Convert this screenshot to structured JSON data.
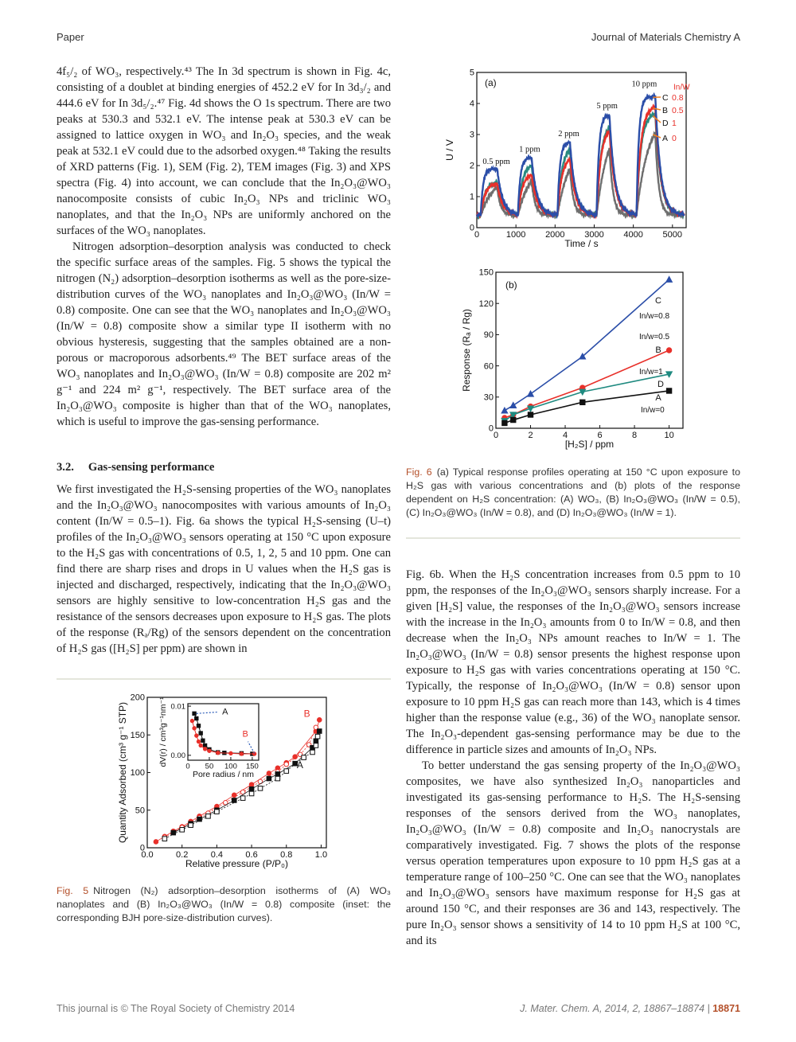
{
  "header": {
    "left": "Paper",
    "right": "Journal of Materials Chemistry A"
  },
  "left_column": {
    "paragraphs": [
      "4f₅/₂ of WO₃, respectively.⁴³ The In 3d spectrum is shown in Fig. 4c, consisting of a doublet at binding energies of 452.2 eV for In 3d₃/₂ and 444.6 eV for In 3d₅/₂.⁴⁷ Fig. 4d shows the O 1s spectrum. There are two peaks at 530.3 and 532.1 eV. The intense peak at 530.3 eV can be assigned to lattice oxygen in WO₃ and In₂O₃ species, and the weak peak at 532.1 eV could due to the adsorbed oxygen.⁴⁸ Taking the results of XRD patterns (Fig. 1), SEM (Fig. 2), TEM images (Fig. 3) and XPS spectra (Fig. 4) into account, we can conclude that the In₂O₃@WO₃ nanocomposite consists of cubic In₂O₃ NPs and triclinic WO₃ nanoplates, and that the In₂O₃ NPs are uniformly anchored on the surfaces of the WO₃ nanoplates.",
      "Nitrogen adsorption–desorption analysis was conducted to check the specific surface areas of the samples. Fig. 5 shows the typical the nitrogen (N₂) adsorption–desorption isotherms as well as the pore-size-distribution curves of the WO₃ nanoplates and In₂O₃@WO₃ (In/W = 0.8) composite. One can see that the WO₃ nanoplates and In₂O₃@WO₃ (In/W = 0.8) composite show a similar type II isotherm with no obvious hysteresis, suggesting that the samples obtained are a non-porous or macroporous adsorbents.⁴⁹ The BET surface areas of the WO₃ nanoplates and In₂O₃@WO₃ (In/W = 0.8) composite are 202 m² g⁻¹ and 224 m² g⁻¹, respectively. The BET surface area of the In₂O₃@WO₃ composite is higher than that of the WO₃ nanoplates, which is useful to improve the gas-sensing performance."
    ],
    "section_number": "3.2.",
    "section_title": "Gas-sensing performance",
    "section_paragraph": "We first investigated the H₂S-sensing properties of the WO₃ nanoplates and the In₂O₃@WO₃ nanocomposites with various amounts of In₂O₃ content (In/W = 0.5–1). Fig. 6a shows the typical H₂S-sensing (U–t) profiles of the In₂O₃@WO₃ sensors operating at 150 °C upon exposure to the H₂S gas with concentrations of 0.5, 1, 2, 5 and 10 ppm. One can find there are sharp rises and drops in U values when the H₂S gas is injected and discharged, respectively, indicating that the In₂O₃@WO₃ sensors are highly sensitive to low-concentration H₂S gas and the resistance of the sensors decreases upon exposure to H₂S gas. The plots of the response (Rₐ/Rg) of the sensors dependent on the concentration of H₂S gas ([H₂S] per ppm) are shown in"
  },
  "right_column": {
    "paragraphs": [
      "Fig. 6b. When the H₂S concentration increases from 0.5 ppm to 10 ppm, the responses of the In₂O₃@WO₃ sensors sharply increase. For a given [H₂S] value, the responses of the In₂O₃@WO₃ sensors increase with the increase in the In₂O₃ amounts from 0 to In/W = 0.8, and then decrease when the In₂O₃ NPs amount reaches to In/W = 1. The In₂O₃@WO₃ (In/W = 0.8) sensor presents the highest response upon exposure to H₂S gas with varies concentrations operating at 150 °C. Typically, the response of In₂O₃@WO₃ (In/W = 0.8) sensor upon exposure to 10 ppm H₂S gas can reach more than 143, which is 4 times higher than the response value (e.g., 36) of the WO₃ nanoplate sensor. The In₂O₃-dependent gas-sensing performance may be due to the difference in particle sizes and amounts of In₂O₃ NPs.",
      "To better understand the gas sensing property of the In₂O₃@WO₃ composites, we have also synthesized In₂O₃ nanoparticles and investigated its gas-sensing performance to H₂S. The H₂S-sensing responses of the sensors derived from the WO₃ nanoplates, In₂O₃@WO₃ (In/W = 0.8) composite and In₂O₃ nanocrystals are comparatively investigated. Fig. 7 shows the plots of the response versus operation temperatures upon exposure to 10 ppm H₂S gas at a temperature range of 100–250 °C. One can see that the WO₃ nanoplates and In₂O₃@WO₃ sensors have maximum response for H₂S gas at around 150 °C, and their responses are 36 and 143, respectively. The pure In₂O₃ sensor shows a sensitivity of 14 to 10 ppm H₂S at 100 °C, and its"
    ]
  },
  "fig5_caption": {
    "label": "Fig. 5",
    "text": "Nitrogen (N₂) adsorption–desorption isotherms of (A) WO₃ nanoplates and (B) In₂O₃@WO₃ (In/W = 0.8) composite (inset: the corresponding BJH pore-size-distribution curves)."
  },
  "fig6_caption": {
    "label": "Fig. 6",
    "text": "(a) Typical response profiles operating at 150 °C upon exposure to H₂S gas with various concentrations and (b) plots of the response dependent on H₂S concentration: (A) WO₃, (B) In₂O₃@WO₃ (In/W = 0.5), (C) In₂O₃@WO₃ (In/W = 0.8), and (D) In₂O₃@WO₃ (In/W = 1)."
  },
  "footer": {
    "left": "This journal is © The Royal Society of Chemistry 2014",
    "citation": "J. Mater. Chem. A, 2014, 2, 18867–18874 |",
    "page": "18871"
  },
  "chart_data": [
    {
      "id": "fig6a",
      "type": "line",
      "panel_label": "(a)",
      "xlabel": "Time / s",
      "ylabel": "U / V",
      "xlim": [
        0,
        5350
      ],
      "ylim": [
        0,
        5
      ],
      "xtick_labels": [
        "0",
        "1000",
        "2000",
        "3000",
        "4000",
        "5000"
      ],
      "ytick_labels": [
        "0",
        "1",
        "2",
        "3",
        "4",
        "5"
      ],
      "concentration_labels": [
        "0.5 ppm",
        "1 ppm",
        "2 ppm",
        "5 ppm",
        "10 ppm"
      ],
      "legend_title": "In/W",
      "baseline_U": 0.4,
      "series": [
        {
          "name": "C",
          "in_w": "0.8",
          "color": "#2b4ea8",
          "peak_U": [
            1.9,
            2.25,
            2.75,
            3.62,
            4.22
          ]
        },
        {
          "name": "B",
          "in_w": "0.5",
          "color": "#e8302a",
          "peak_U": [
            1.42,
            1.7,
            2.2,
            3.12,
            3.88
          ]
        },
        {
          "name": "D",
          "in_w": "1",
          "color": "#2a8a80",
          "peak_U": [
            1.45,
            2.0,
            2.5,
            3.22,
            3.65
          ]
        },
        {
          "name": "A",
          "in_w": "0",
          "color": "#6e6e6e",
          "peak_U": [
            1.3,
            1.5,
            1.9,
            2.55,
            3.05
          ]
        }
      ],
      "label_color": "#e8302a",
      "arrow_color": "#f08020"
    },
    {
      "id": "fig6b",
      "type": "line",
      "panel_label": "(b)",
      "xlabel": "[H₂S] / ppm",
      "ylabel": "Response (Rₐ / Rg)",
      "xlim": [
        0,
        10.8
      ],
      "ylim": [
        0,
        150
      ],
      "xtick_labels": [
        "0",
        "2",
        "4",
        "6",
        "8",
        "10"
      ],
      "ytick_labels": [
        "0",
        "30",
        "60",
        "90",
        "120",
        "150"
      ],
      "x": [
        0.5,
        1,
        2,
        5,
        10
      ],
      "series": [
        {
          "name": "C",
          "label": "In/w=0.8",
          "color": "#2b4ea8",
          "marker": "triangle-up",
          "values": [
            17,
            22,
            33,
            69,
            143
          ]
        },
        {
          "name": "B",
          "label": "In/w=0.5",
          "color": "#e8302a",
          "marker": "circle",
          "values": [
            10,
            13,
            21,
            39,
            75
          ]
        },
        {
          "name": "D",
          "label": "In/w=1",
          "color": "#1f8a80",
          "marker": "triangle-down",
          "values": [
            7,
            13,
            19,
            35,
            52
          ]
        },
        {
          "name": "A",
          "label": "In/w=0",
          "color": "#111111",
          "marker": "square",
          "values": [
            5,
            8,
            13,
            25,
            36
          ]
        }
      ]
    },
    {
      "id": "fig5",
      "type": "scatter",
      "xlabel": "Relative pressure (P/P₀)",
      "ylabel": "Quantity Adsorbed (cm³ g⁻¹ STP)",
      "xlim": [
        0,
        1.03
      ],
      "ylim": [
        0,
        200
      ],
      "xtick_labels": [
        "0.0",
        "0.2",
        "0.4",
        "0.6",
        "0.8",
        "1.0"
      ],
      "ytick_labels": [
        "0",
        "50",
        "100",
        "150",
        "200"
      ],
      "series": [
        {
          "name": "B",
          "branch": "adsorption",
          "color": "#e8302a",
          "marker": "circle",
          "filled": true,
          "x": [
            0.05,
            0.1,
            0.15,
            0.2,
            0.25,
            0.3,
            0.4,
            0.5,
            0.6,
            0.7,
            0.75,
            0.8,
            0.85,
            0.97,
            0.99
          ],
          "y": [
            8,
            15,
            22,
            28,
            35,
            42,
            55,
            70,
            84,
            99,
            106,
            113,
            121,
            155,
            170
          ]
        },
        {
          "name": "B",
          "branch": "desorption",
          "color": "#e8302a",
          "marker": "circle",
          "filled": false,
          "x": [
            0.1,
            0.2,
            0.3,
            0.35,
            0.45,
            0.55,
            0.65,
            0.75,
            0.8,
            0.88,
            0.93,
            0.97
          ],
          "y": [
            14,
            27,
            40,
            46,
            60,
            74,
            88,
            101,
            111,
            124,
            137,
            160
          ]
        },
        {
          "name": "A",
          "branch": "adsorption",
          "color": "#111111",
          "marker": "square",
          "filled": true,
          "x": [
            0.15,
            0.25,
            0.3,
            0.4,
            0.5,
            0.6,
            0.7,
            0.75,
            0.85,
            0.95,
            0.97,
            0.99
          ],
          "y": [
            20,
            32,
            38,
            50,
            63,
            78,
            92,
            98,
            112,
            133,
            142,
            155
          ]
        },
        {
          "name": "A",
          "branch": "desorption",
          "color": "#111111",
          "marker": "square",
          "filled": false,
          "x": [
            0.1,
            0.2,
            0.25,
            0.35,
            0.4,
            0.55,
            0.6,
            0.65,
            0.75,
            0.8,
            0.9,
            0.95,
            0.97,
            0.98
          ],
          "y": [
            12,
            24,
            30,
            42,
            48,
            66,
            72,
            79,
            92,
            102,
            120,
            127,
            136,
            148
          ]
        }
      ],
      "labels": [
        "A",
        "B"
      ],
      "inset": {
        "xlabel": "Pore radius / nm",
        "ylabel": "dV(r) / cm³g⁻¹nm⁻¹",
        "xlim": [
          0,
          165
        ],
        "ylim": [
          -0.001,
          0.0105
        ],
        "xtick_labels": [
          "0",
          "50",
          "100",
          "150"
        ],
        "ytick_labels": [
          "0.00",
          "0.01"
        ],
        "labels": [
          "A",
          "B"
        ],
        "series": [
          {
            "name": "A",
            "color": "#111111",
            "marker": "square",
            "x": [
              15,
              20,
              25,
              30,
              35,
              40,
              50,
              70,
              85,
              125,
              150
            ],
            "y": [
              0.0085,
              0.0075,
              0.006,
              0.0045,
              0.003,
              0.002,
              0.0012,
              0.0006,
              0.0005,
              0.0004,
              0.0003
            ]
          },
          {
            "name": "B",
            "color": "#e8302a",
            "marker": "circle",
            "x": [
              10,
              15,
              20,
              25,
              30,
              40,
              50,
              70,
              100,
              125,
              155
            ],
            "y": [
              0.007,
              0.0055,
              0.004,
              0.0028,
              0.002,
              0.0013,
              0.0009,
              0.0005,
              0.0004,
              0.0003,
              0.0003
            ]
          }
        ],
        "arrow_color": "#2b5cb8"
      }
    }
  ]
}
